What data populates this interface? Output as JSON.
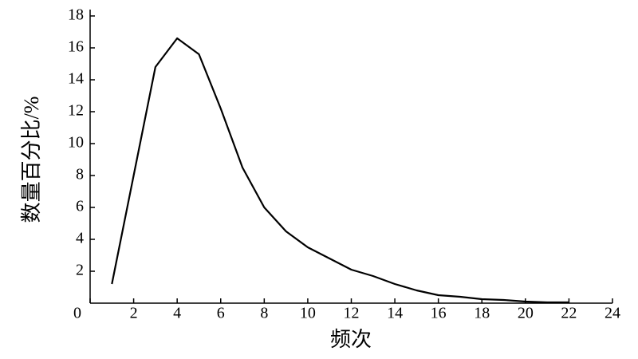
{
  "chart_data": {
    "type": "line",
    "xlabel": "频次",
    "ylabel": "数量百分比/%",
    "x": [
      1,
      2,
      3,
      4,
      5,
      6,
      7,
      8,
      9,
      10,
      11,
      12,
      13,
      14,
      15,
      16,
      17,
      18,
      19,
      20,
      21,
      22
    ],
    "series": [
      {
        "color": "#000000",
        "values": [
          1.2,
          8.0,
          14.8,
          16.6,
          15.6,
          12.2,
          8.5,
          6.0,
          4.5,
          3.5,
          2.8,
          2.1,
          1.7,
          1.2,
          0.8,
          0.5,
          0.4,
          0.25,
          0.2,
          0.1,
          0.05,
          0.05
        ]
      }
    ],
    "xlim": [
      0,
      24
    ],
    "xticks": [
      0,
      2,
      4,
      6,
      8,
      10,
      12,
      14,
      16,
      18,
      20,
      22,
      24
    ],
    "ylim": [
      0,
      18
    ],
    "yticks": [
      2,
      4,
      6,
      8,
      10,
      12,
      14,
      16,
      18
    ]
  }
}
